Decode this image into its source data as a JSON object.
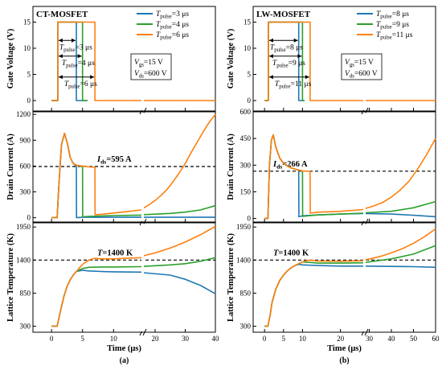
{
  "chart_data": [
    {
      "type": "line",
      "id": "a",
      "title": "CT-MOSFET",
      "sublabel": "(a)",
      "xlabel": "Time (μs)",
      "xticks": [
        "0",
        "5",
        "10",
        "20",
        "30",
        "40"
      ],
      "legend": {
        "placement": "top-right",
        "entries": [
          {
            "label": "T",
            "sub": "pulse",
            "rest": "=3 μs",
            "color": "#1f77b4"
          },
          {
            "label": "T",
            "sub": "pulse",
            "rest": "=4 μs",
            "color": "#2ca02c"
          },
          {
            "label": "T",
            "sub": "pulse",
            "rest": "=6 μs",
            "color": "#ff7f0e"
          }
        ]
      },
      "panels": [
        {
          "ylabel": "Gate Voltage (V)",
          "ylim": [
            -2,
            18
          ],
          "yticks": [
            "0",
            "5",
            "10",
            "15"
          ],
          "cond": [
            "V",
            "gs",
            "=15 V",
            "V",
            "ds",
            "=600 V"
          ],
          "pulse_labels": [
            [
              "T",
              "pulse",
              "=3 μs"
            ],
            [
              "T",
              "pulse",
              "=4 μs"
            ],
            [
              "T",
              "pulse",
              "=6 μs"
            ]
          ],
          "series": [
            {
              "color": "#1f77b4",
              "x": [
                0,
                1,
                1,
                4,
                4,
                5.8
              ],
              "y": [
                0,
                0,
                15,
                15,
                0,
                0
              ]
            },
            {
              "color": "#2ca02c",
              "x": [
                0,
                1,
                1,
                5,
                5,
                5.8
              ],
              "y": [
                0,
                0,
                15,
                15,
                0,
                0
              ]
            },
            {
              "color": "#ff7f0e",
              "x": [
                0,
                1,
                1,
                7,
                7,
                14.5,
                null,
                16,
                40
              ],
              "y": [
                0,
                0,
                15,
                15,
                0,
                0,
                null,
                0,
                0
              ]
            }
          ]
        },
        {
          "ylabel": "Drain Current (A)",
          "ylim": [
            -50,
            1230
          ],
          "yticks": [
            "0",
            "300",
            "600",
            "900",
            "1200"
          ],
          "ref_line": 595,
          "ref_label": [
            "I",
            "ds",
            "=595 A"
          ],
          "series": [
            {
              "color": "#1f77b4",
              "x": [
                0,
                0.9,
                1.2,
                1.6,
                2.1,
                2.6,
                3,
                3.5,
                4,
                4.02,
                5,
                6,
                8,
                10,
                14.5,
                null,
                16,
                25,
                30,
                35,
                40
              ],
              "y": [
                0,
                0,
                400,
                850,
                980,
                850,
                700,
                630,
                600,
                0,
                5,
                5,
                5,
                5,
                5,
                null,
                5,
                5,
                5,
                5,
                5
              ]
            },
            {
              "color": "#2ca02c",
              "x": [
                0,
                0.9,
                1.2,
                1.6,
                2.1,
                2.6,
                3,
                3.5,
                4,
                4.5,
                5,
                5.02,
                6,
                8,
                10,
                14.5,
                null,
                16,
                25,
                30,
                35,
                40
              ],
              "y": [
                0,
                0,
                400,
                850,
                980,
                850,
                700,
                630,
                610,
                600,
                595,
                10,
                15,
                20,
                25,
                30,
                null,
                35,
                50,
                65,
                90,
                140
              ]
            },
            {
              "color": "#ff7f0e",
              "x": [
                0,
                0.9,
                1.2,
                1.6,
                2.1,
                2.6,
                3,
                3.5,
                4,
                5,
                6,
                7,
                7.02,
                8,
                10,
                12,
                14.5,
                null,
                16,
                18,
                20,
                22,
                24,
                26,
                28,
                30,
                32,
                34,
                36,
                38,
                40
              ],
              "y": [
                0,
                0,
                400,
                850,
                980,
                850,
                700,
                630,
                610,
                600,
                590,
                585,
                35,
                40,
                55,
                70,
                90,
                null,
                110,
                150,
                200,
                260,
                330,
                420,
                520,
                630,
                760,
                880,
                1000,
                1110,
                1200
              ]
            }
          ]
        },
        {
          "ylabel": "Lattice Temperature (K)",
          "ylim": [
            200,
            2020
          ],
          "yticks": [
            "300",
            "850",
            "1400",
            "1950"
          ],
          "ref_line": 1400,
          "ref_label": [
            "T",
            "",
            "=1400 K"
          ],
          "series": [
            {
              "color": "#1f77b4",
              "x": [
                0,
                0.9,
                1.5,
                2,
                2.5,
                3,
                3.5,
                4,
                5,
                6,
                8,
                10,
                14.5,
                null,
                16,
                25,
                30,
                35,
                40
              ],
              "y": [
                300,
                300,
                580,
                800,
                960,
                1070,
                1150,
                1210,
                1230,
                1220,
                1210,
                1205,
                1200,
                null,
                1190,
                1150,
                1080,
                980,
                840
              ]
            },
            {
              "color": "#2ca02c",
              "x": [
                0,
                0.9,
                1.5,
                2,
                2.5,
                3,
                3.5,
                4,
                5,
                6,
                8,
                10,
                14.5,
                null,
                16,
                25,
                30,
                35,
                40
              ],
              "y": [
                300,
                300,
                580,
                800,
                960,
                1070,
                1150,
                1210,
                1260,
                1280,
                1285,
                1285,
                1290,
                null,
                1295,
                1320,
                1340,
                1380,
                1440
              ]
            },
            {
              "color": "#ff7f0e",
              "x": [
                0,
                0.9,
                1.5,
                2,
                2.5,
                3,
                3.5,
                4,
                5,
                6,
                7,
                8,
                10,
                12,
                14.5,
                null,
                16,
                20,
                25,
                30,
                35,
                40
              ],
              "y": [
                300,
                300,
                580,
                800,
                960,
                1070,
                1150,
                1210,
                1330,
                1400,
                1430,
                1420,
                1420,
                1430,
                1440,
                null,
                1470,
                1520,
                1600,
                1700,
                1820,
                1960
              ]
            }
          ]
        }
      ]
    },
    {
      "type": "line",
      "id": "b",
      "title": "LW-MOSFET",
      "sublabel": "(b)",
      "xlabel": "Time (μs)",
      "xticks": [
        "0",
        "5",
        "10",
        "20",
        "30",
        "40",
        "50",
        "60"
      ],
      "legend": {
        "placement": "top-right",
        "entries": [
          {
            "label": "T",
            "sub": "pulse",
            "rest": "=8 μs",
            "color": "#1f77b4"
          },
          {
            "label": "T",
            "sub": "pulse",
            "rest": "=9 μs",
            "color": "#2ca02c"
          },
          {
            "label": "T",
            "sub": "pulse",
            "rest": "=11 μs",
            "color": "#ff7f0e"
          }
        ]
      },
      "panels": [
        {
          "ylabel": "Gate Voltage (V)",
          "ylim": [
            -2,
            18
          ],
          "yticks": [
            "0",
            "5",
            "10",
            "15"
          ],
          "cond": [
            "V",
            "gs",
            "=15 V",
            "V",
            "ds",
            "=600 V"
          ],
          "pulse_labels": [
            [
              "T",
              "pulse",
              "=8 μs"
            ],
            [
              "T",
              "pulse",
              "=9 μs"
            ],
            [
              "T",
              "pulse",
              "=11 μs"
            ]
          ],
          "series": [
            {
              "color": "#1f77b4",
              "x": [
                0,
                1,
                1,
                9,
                9,
                10.5
              ],
              "y": [
                0,
                0,
                15,
                15,
                0,
                0
              ]
            },
            {
              "color": "#2ca02c",
              "x": [
                0,
                1,
                1,
                10,
                10,
                10.5
              ],
              "y": [
                0,
                0,
                15,
                15,
                0,
                0
              ]
            },
            {
              "color": "#ff7f0e",
              "x": [
                0,
                1,
                1,
                12,
                12,
                26,
                null,
                28,
                60
              ],
              "y": [
                0,
                0,
                15,
                15,
                0,
                0,
                null,
                0,
                0
              ]
            }
          ]
        },
        {
          "ylabel": "Drain Current (A)",
          "ylim": [
            -20,
            600
          ],
          "yticks": [
            "0",
            "150",
            "300",
            "450",
            "600"
          ],
          "ref_line": 266,
          "ref_label": [
            "I",
            "ds",
            "=266 A"
          ],
          "series": [
            {
              "color": "#1f77b4",
              "x": [
                0,
                0.9,
                1.3,
                1.8,
                2.3,
                3,
                4,
                5,
                6,
                7,
                8,
                9,
                9.05,
                10,
                14,
                20,
                26,
                null,
                28,
                40,
                50,
                60
              ],
              "y": [
                0,
                0,
                300,
                440,
                470,
                400,
                340,
                310,
                295,
                285,
                278,
                272,
                10,
                15,
                20,
                25,
                28,
                null,
                28,
                25,
                18,
                10
              ]
            },
            {
              "color": "#2ca02c",
              "x": [
                0,
                0.9,
                1.3,
                1.8,
                2.3,
                3,
                4,
                5,
                6,
                7,
                8,
                9,
                10,
                10.05,
                14,
                20,
                26,
                null,
                28,
                40,
                50,
                60
              ],
              "y": [
                0,
                0,
                300,
                440,
                470,
                400,
                340,
                310,
                295,
                285,
                278,
                272,
                268,
                12,
                20,
                25,
                30,
                null,
                32,
                40,
                60,
                95
              ]
            },
            {
              "color": "#ff7f0e",
              "x": [
                0,
                0.9,
                1.3,
                1.8,
                2.3,
                3,
                4,
                5,
                6,
                7,
                8,
                9,
                10,
                11,
                12,
                12.05,
                14,
                20,
                26,
                null,
                28,
                32,
                36,
                40,
                44,
                48,
                52,
                56,
                60
              ],
              "y": [
                0,
                0,
                300,
                440,
                470,
                400,
                340,
                310,
                295,
                285,
                278,
                272,
                268,
                266,
                265,
                30,
                35,
                40,
                50,
                null,
                55,
                70,
                90,
                120,
                160,
                210,
                280,
                360,
                450
              ]
            }
          ]
        },
        {
          "ylabel": "Lattice Temperature (K)",
          "ylim": [
            200,
            2020
          ],
          "yticks": [
            "300",
            "850",
            "1400",
            "1950"
          ],
          "ref_line": 1400,
          "ref_label": [
            "T",
            "",
            "=1400 K"
          ],
          "series": [
            {
              "color": "#1f77b4",
              "x": [
                0,
                0.9,
                1.5,
                2,
                3,
                4,
                5,
                6,
                7,
                8,
                9,
                10,
                14,
                20,
                26,
                null,
                28,
                40,
                50,
                60
              ],
              "y": [
                300,
                300,
                500,
                700,
                920,
                1060,
                1150,
                1220,
                1270,
                1310,
                1330,
                1320,
                1310,
                1300,
                1300,
                null,
                1300,
                1295,
                1290,
                1280
              ]
            },
            {
              "color": "#2ca02c",
              "x": [
                0,
                0.9,
                1.5,
                2,
                3,
                4,
                5,
                6,
                7,
                8,
                9,
                10,
                14,
                20,
                26,
                null,
                28,
                40,
                50,
                60
              ],
              "y": [
                300,
                300,
                500,
                700,
                920,
                1060,
                1150,
                1220,
                1270,
                1310,
                1340,
                1370,
                1350,
                1350,
                1355,
                null,
                1360,
                1420,
                1500,
                1640
              ]
            },
            {
              "color": "#ff7f0e",
              "x": [
                0,
                0.9,
                1.5,
                2,
                3,
                4,
                5,
                6,
                7,
                8,
                9,
                10,
                11,
                12,
                14,
                20,
                26,
                null,
                28,
                35,
                40,
                45,
                50,
                55,
                60
              ],
              "y": [
                300,
                300,
                500,
                700,
                920,
                1060,
                1150,
                1220,
                1270,
                1310,
                1340,
                1370,
                1390,
                1400,
                1385,
                1380,
                1390,
                null,
                1400,
                1460,
                1520,
                1590,
                1680,
                1790,
                1920
              ]
            }
          ]
        }
      ]
    }
  ]
}
